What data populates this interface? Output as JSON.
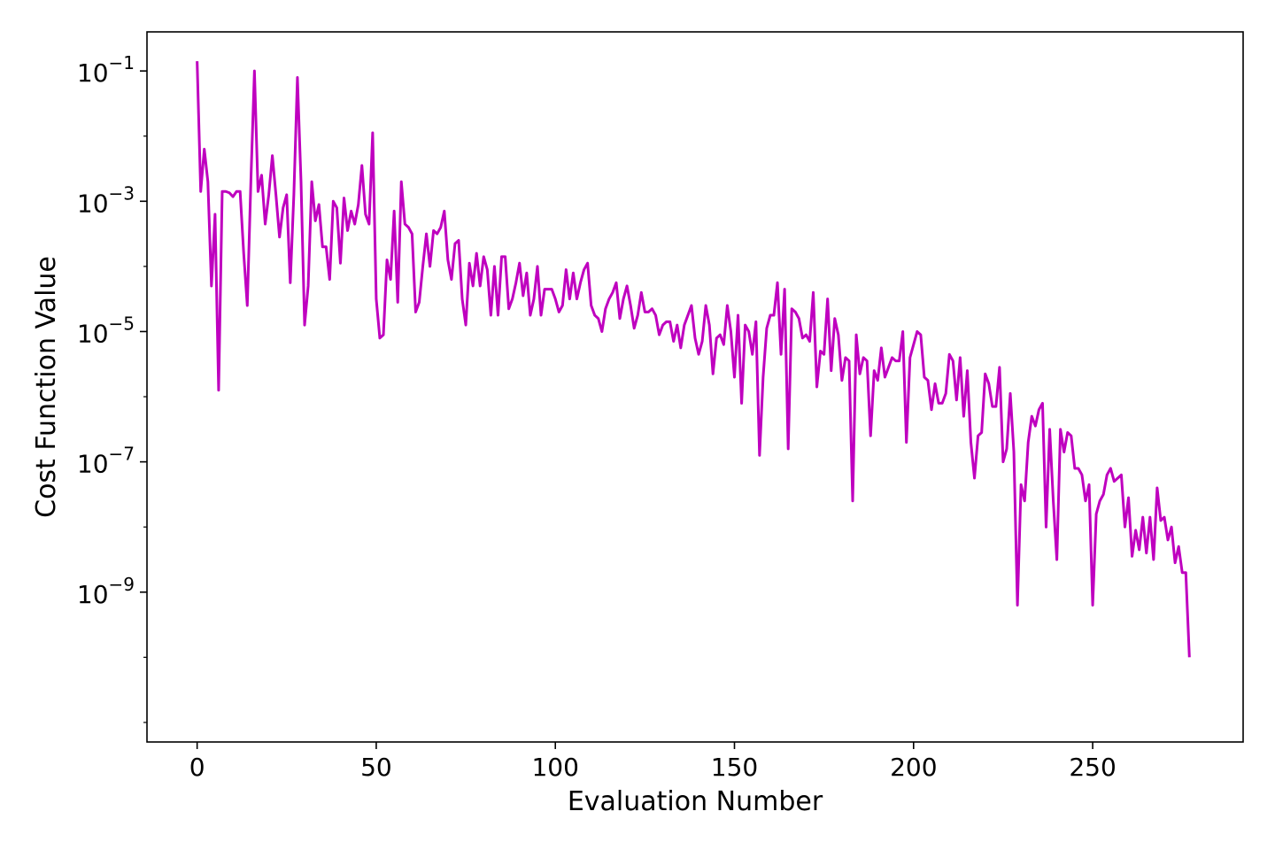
{
  "chart_data": {
    "type": "line",
    "title": "",
    "xlabel": "Evaluation Number",
    "ylabel": "Cost Function Value",
    "yscale": "log",
    "xlim": [
      -14,
      292
    ],
    "ylim_exponent": [
      -11.3,
      -0.4
    ],
    "grid": false,
    "legend": "none",
    "line_color": "#bf00bf",
    "xticks": [
      {
        "value": 0,
        "label": "0"
      },
      {
        "value": 50,
        "label": "50"
      },
      {
        "value": 100,
        "label": "100"
      },
      {
        "value": 150,
        "label": "150"
      },
      {
        "value": 200,
        "label": "200"
      },
      {
        "value": 250,
        "label": "250"
      }
    ],
    "yticks": [
      {
        "exponent": -1,
        "base": "10",
        "sup": "−1"
      },
      {
        "exponent": -3,
        "base": "10",
        "sup": "−3"
      },
      {
        "exponent": -5,
        "base": "10",
        "sup": "−5"
      },
      {
        "exponent": -7,
        "base": "10",
        "sup": "−7"
      },
      {
        "exponent": -9,
        "base": "10",
        "sup": "−9"
      }
    ],
    "series": [
      {
        "log10_values": [
          -0.85,
          -2.85,
          -2.2,
          -2.7,
          -4.3,
          -3.2,
          -5.9,
          -2.85,
          -2.85,
          -2.87,
          -2.93,
          -2.85,
          -2.85,
          -3.8,
          -4.6,
          -2.7,
          -1.0,
          -2.85,
          -2.6,
          -3.35,
          -2.9,
          -2.3,
          -2.9,
          -3.55,
          -3.1,
          -2.9,
          -4.25,
          -2.9,
          -1.1,
          -2.7,
          -4.9,
          -4.3,
          -2.7,
          -3.3,
          -3.05,
          -3.7,
          -3.7,
          -4.2,
          -3.0,
          -3.1,
          -3.95,
          -2.95,
          -3.45,
          -3.15,
          -3.35,
          -3.05,
          -2.45,
          -3.2,
          -3.35,
          -1.95,
          -4.5,
          -5.1,
          -5.05,
          -3.9,
          -4.2,
          -3.15,
          -4.55,
          -2.7,
          -3.35,
          -3.4,
          -3.5,
          -4.7,
          -4.55,
          -4.0,
          -3.5,
          -4.0,
          -3.45,
          -3.5,
          -3.4,
          -3.15,
          -3.9,
          -4.2,
          -3.65,
          -3.6,
          -4.5,
          -4.9,
          -3.95,
          -4.3,
          -3.8,
          -4.3,
          -3.85,
          -4.05,
          -4.75,
          -4.0,
          -4.75,
          -3.85,
          -3.85,
          -4.65,
          -4.5,
          -4.25,
          -3.95,
          -4.45,
          -4.1,
          -4.75,
          -4.5,
          -4.0,
          -4.75,
          -4.35,
          -4.35,
          -4.35,
          -4.5,
          -4.7,
          -4.6,
          -4.05,
          -4.5,
          -4.1,
          -4.5,
          -4.25,
          -4.05,
          -3.95,
          -4.6,
          -4.75,
          -4.8,
          -5.0,
          -4.65,
          -4.5,
          -4.4,
          -4.25,
          -4.8,
          -4.5,
          -4.3,
          -4.6,
          -4.95,
          -4.75,
          -4.4,
          -4.7,
          -4.7,
          -4.65,
          -4.75,
          -5.05,
          -4.9,
          -4.85,
          -4.85,
          -5.15,
          -4.9,
          -5.25,
          -4.9,
          -4.75,
          -4.6,
          -5.1,
          -5.35,
          -5.15,
          -4.6,
          -4.9,
          -5.65,
          -5.1,
          -5.05,
          -5.2,
          -4.6,
          -5.0,
          -5.7,
          -4.75,
          -6.1,
          -4.9,
          -5.0,
          -5.35,
          -4.85,
          -6.9,
          -5.7,
          -4.95,
          -4.75,
          -4.75,
          -4.25,
          -5.35,
          -4.35,
          -6.8,
          -4.65,
          -4.7,
          -4.8,
          -5.1,
          -5.05,
          -5.15,
          -4.4,
          -5.85,
          -5.3,
          -5.35,
          -4.5,
          -5.6,
          -4.8,
          -5.05,
          -5.75,
          -5.4,
          -5.45,
          -7.6,
          -5.05,
          -5.65,
          -5.4,
          -5.45,
          -6.6,
          -5.6,
          -5.75,
          -5.25,
          -5.7,
          -5.55,
          -5.4,
          -5.45,
          -5.45,
          -5.0,
          -6.7,
          -5.4,
          -5.2,
          -5.0,
          -5.05,
          -5.7,
          -5.75,
          -6.2,
          -5.8,
          -6.1,
          -6.1,
          -5.95,
          -5.35,
          -5.45,
          -6.05,
          -5.4,
          -6.3,
          -5.6,
          -6.7,
          -7.25,
          -6.6,
          -6.55,
          -5.65,
          -5.8,
          -6.15,
          -6.15,
          -5.55,
          -7.0,
          -6.8,
          -5.95,
          -6.85,
          -9.2,
          -7.35,
          -7.6,
          -6.7,
          -6.3,
          -6.45,
          -6.2,
          -6.1,
          -8.0,
          -6.5,
          -7.6,
          -8.5,
          -6.5,
          -6.85,
          -6.55,
          -6.6,
          -7.1,
          -7.1,
          -7.2,
          -7.6,
          -7.35,
          -9.2,
          -7.8,
          -7.6,
          -7.5,
          -7.2,
          -7.1,
          -7.3,
          -7.25,
          -7.2,
          -8.0,
          -7.55,
          -8.45,
          -8.05,
          -8.35,
          -7.85,
          -8.4,
          -7.85,
          -8.5,
          -7.4,
          -7.9,
          -7.85,
          -8.2,
          -8.0,
          -8.55,
          -8.3,
          -8.7,
          -8.7,
          -10.0
        ]
      }
    ]
  }
}
